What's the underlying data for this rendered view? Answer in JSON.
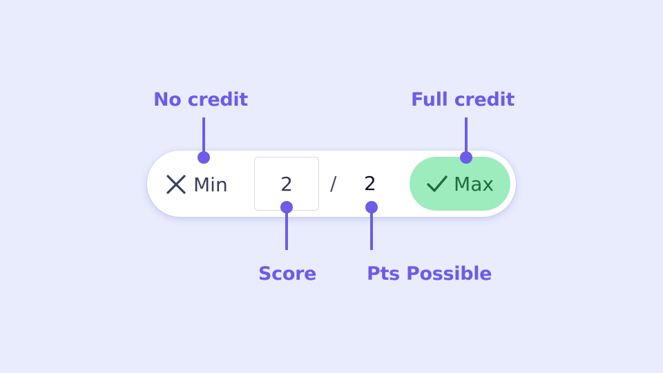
{
  "callouts": {
    "no_credit": "No credit",
    "full_credit": "Full credit",
    "score": "Score",
    "pts_possible": "Pts Possible"
  },
  "grader": {
    "min_label": "Min",
    "min_icon": "x-icon",
    "score_value": "2",
    "separator": "/",
    "points_possible": "2",
    "max_label": "Max",
    "max_icon": "checkmark-icon"
  },
  "colors": {
    "accent": "#6c5ce7",
    "background": "#e8ecfd",
    "max_button_bg": "#9decbd",
    "max_button_text": "#216b3c"
  }
}
